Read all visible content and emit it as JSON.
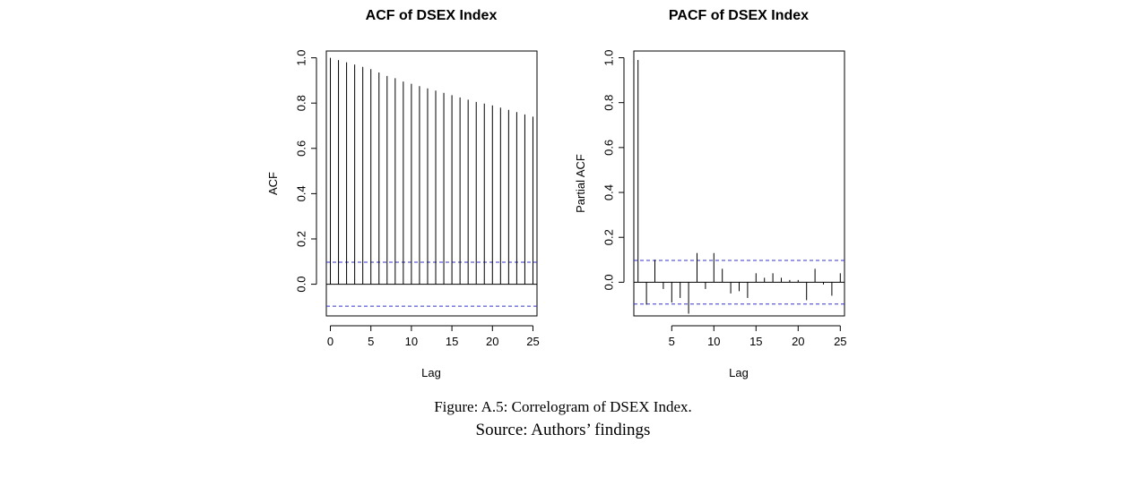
{
  "chart_data": [
    {
      "type": "bar",
      "title": "ACF of DSEX Index",
      "xlabel": "Lag",
      "ylabel": "ACF",
      "x_ticks": [
        "0",
        "5",
        "10",
        "15",
        "20",
        "25"
      ],
      "y_ticks": [
        "0.0",
        "0.2",
        "0.4",
        "0.6",
        "0.8",
        "1.0"
      ],
      "xlim": [
        -0.5,
        25.5
      ],
      "ylim": [
        -0.14,
        1.03
      ],
      "lags": [
        0,
        1,
        2,
        3,
        4,
        5,
        6,
        7,
        8,
        9,
        10,
        11,
        12,
        13,
        14,
        15,
        16,
        17,
        18,
        19,
        20,
        21,
        22,
        23,
        24,
        25
      ],
      "values": [
        1.0,
        0.99,
        0.98,
        0.97,
        0.96,
        0.95,
        0.935,
        0.92,
        0.91,
        0.895,
        0.885,
        0.875,
        0.865,
        0.855,
        0.845,
        0.835,
        0.825,
        0.815,
        0.805,
        0.798,
        0.79,
        0.78,
        0.77,
        0.76,
        0.75,
        0.74
      ],
      "confidence_band": 0.097,
      "band_color": "#3333cc",
      "grid": false
    },
    {
      "type": "bar",
      "title": "PACF of DSEX Index",
      "xlabel": "Lag",
      "ylabel": "Partial ACF",
      "x_ticks": [
        "5",
        "10",
        "15",
        "20",
        "25"
      ],
      "y_ticks": [
        "0.0",
        "0.2",
        "0.4",
        "0.6",
        "0.8",
        "1.0"
      ],
      "xlim": [
        0.5,
        25.5
      ],
      "ylim": [
        -0.15,
        1.03
      ],
      "lags": [
        1,
        2,
        3,
        4,
        5,
        6,
        7,
        8,
        9,
        10,
        11,
        12,
        13,
        14,
        15,
        16,
        17,
        18,
        19,
        20,
        21,
        22,
        23,
        24,
        25
      ],
      "values": [
        0.99,
        -0.1,
        0.1,
        -0.03,
        -0.09,
        -0.07,
        -0.14,
        0.13,
        -0.03,
        0.13,
        0.06,
        -0.05,
        -0.04,
        -0.07,
        0.04,
        0.02,
        0.04,
        0.02,
        0.01,
        0.01,
        -0.08,
        0.06,
        -0.01,
        -0.06,
        0.04
      ],
      "confidence_band": 0.097,
      "band_color": "#3333cc",
      "grid": false
    }
  ],
  "caption": {
    "figure": "Figure: A.5: Correlogram of DSEX Index.",
    "source": "Source: Authors’ findings"
  }
}
